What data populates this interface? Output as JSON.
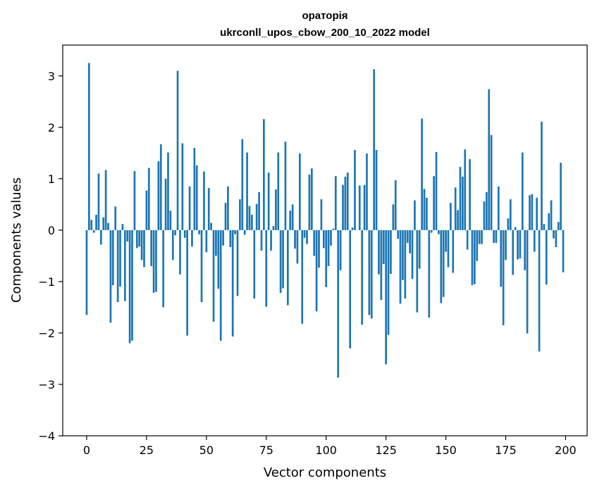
{
  "chart_data": {
    "type": "bar",
    "title_line1": "ораторія",
    "title_line2": "ukrconll_upos_cbow_200_10_2022 model",
    "xlabel": "Vector components",
    "ylabel": "Components values",
    "xlim": [
      -10,
      209
    ],
    "ylim": [
      -4,
      3.6
    ],
    "xticks": [
      0,
      25,
      50,
      75,
      100,
      125,
      150,
      175,
      200
    ],
    "yticks": [
      -4,
      -3,
      -2,
      -1,
      0,
      1,
      2,
      3
    ],
    "xtick_labels": [
      "0",
      "25",
      "50",
      "75",
      "100",
      "125",
      "150",
      "175",
      "200"
    ],
    "ytick_labels": [
      "−4",
      "−3",
      "−2",
      "−1",
      "0",
      "1",
      "2",
      "3"
    ],
    "grid": false,
    "bar_color": "#1f77b4",
    "x": [
      0,
      1,
      2,
      3,
      4,
      5,
      6,
      7,
      8,
      9,
      10,
      11,
      12,
      13,
      14,
      15,
      16,
      17,
      18,
      19,
      20,
      21,
      22,
      23,
      24,
      25,
      26,
      27,
      28,
      29,
      30,
      31,
      32,
      33,
      34,
      35,
      36,
      37,
      38,
      39,
      40,
      41,
      42,
      43,
      44,
      45,
      46,
      47,
      48,
      49,
      50,
      51,
      52,
      53,
      54,
      55,
      56,
      57,
      58,
      59,
      60,
      61,
      62,
      63,
      64,
      65,
      66,
      67,
      68,
      69,
      70,
      71,
      72,
      73,
      74,
      75,
      76,
      77,
      78,
      79,
      80,
      81,
      82,
      83,
      84,
      85,
      86,
      87,
      88,
      89,
      90,
      91,
      92,
      93,
      94,
      95,
      96,
      97,
      98,
      99,
      100,
      101,
      102,
      103,
      104,
      105,
      106,
      107,
      108,
      109,
      110,
      111,
      112,
      113,
      114,
      115,
      116,
      117,
      118,
      119,
      120,
      121,
      122,
      123,
      124,
      125,
      126,
      127,
      128,
      129,
      130,
      131,
      132,
      133,
      134,
      135,
      136,
      137,
      138,
      139,
      140,
      141,
      142,
      143,
      144,
      145,
      146,
      147,
      148,
      149,
      150,
      151,
      152,
      153,
      154,
      155,
      156,
      157,
      158,
      159,
      160,
      161,
      162,
      163,
      164,
      165,
      166,
      167,
      168,
      169,
      170,
      171,
      172,
      173,
      174,
      175,
      176,
      177,
      178,
      179,
      180,
      181,
      182,
      183,
      184,
      185,
      186,
      187,
      188,
      189,
      190,
      191,
      192,
      193,
      194,
      195,
      196,
      197,
      198,
      199
    ],
    "values": [
      -1.65,
      3.25,
      0.2,
      -0.05,
      0.3,
      1.1,
      -0.28,
      0.25,
      1.17,
      0.14,
      -1.8,
      -1.07,
      0.46,
      -1.4,
      -1.1,
      0.12,
      -1.38,
      -0.22,
      -2.2,
      -2.15,
      1.15,
      -0.35,
      -0.32,
      -0.58,
      -0.72,
      0.77,
      1.21,
      -0.7,
      -1.22,
      -1.2,
      1.34,
      1.67,
      -1.5,
      1.0,
      1.51,
      0.38,
      -0.58,
      -0.1,
      3.1,
      -0.86,
      1.69,
      -0.15,
      -2.05,
      0.85,
      -0.32,
      1.6,
      1.26,
      -0.08,
      -1.4,
      1.14,
      -0.43,
      0.82,
      0.14,
      -1.78,
      -0.5,
      -1.14,
      -2.15,
      -0.3,
      0.53,
      0.85,
      -0.33,
      -2.07,
      -0.08,
      -1.28,
      0.6,
      1.77,
      -0.09,
      1.51,
      0.47,
      0.3,
      -1.33,
      0.51,
      0.74,
      -0.4,
      2.16,
      -1.49,
      1.12,
      -0.4,
      0.08,
      0.79,
      1.51,
      -1.22,
      -1.13,
      1.72,
      -1.46,
      0.38,
      0.5,
      -0.36,
      -0.65,
      1.49,
      -1.82,
      -0.15,
      -0.27,
      1.08,
      1.2,
      -0.5,
      -1.58,
      -0.73,
      0.6,
      -0.35,
      -1.11,
      -0.7,
      -0.3,
      0.03,
      1.05,
      -2.87,
      -0.78,
      0.88,
      1.04,
      1.12,
      -2.3,
      0.05,
      1.56,
      0.0,
      0.87,
      -1.84,
      0.88,
      1.49,
      -1.65,
      -1.72,
      3.13,
      1.56,
      -0.86,
      -1.36,
      -0.66,
      -2.61,
      -2.04,
      -0.85,
      0.5,
      0.97,
      -0.17,
      -1.43,
      -0.97,
      -1.33,
      -0.25,
      -0.45,
      -0.95,
      0.58,
      -1.6,
      -0.75,
      2.17,
      0.8,
      0.63,
      -1.7,
      -0.05,
      1.05,
      1.52,
      -0.08,
      -1.42,
      -1.3,
      -0.42,
      -0.72,
      0.53,
      -0.83,
      0.83,
      0.39,
      1.23,
      1.04,
      1.57,
      -0.38,
      1.38,
      -1.07,
      -1.05,
      -0.6,
      -0.27,
      -0.27,
      0.56,
      0.74,
      2.74,
      1.85,
      -0.25,
      -0.25,
      0.85,
      -1.1,
      -1.85,
      -0.58,
      0.23,
      0.6,
      -0.87,
      0.06,
      -0.57,
      -0.55,
      1.51,
      -0.78,
      -2.01,
      0.68,
      0.7,
      -0.42,
      0.63,
      -2.36,
      2.11,
      0.12,
      -1.06,
      0.33,
      0.58,
      -0.16,
      -0.33,
      0.16,
      1.31,
      -0.82
    ]
  }
}
